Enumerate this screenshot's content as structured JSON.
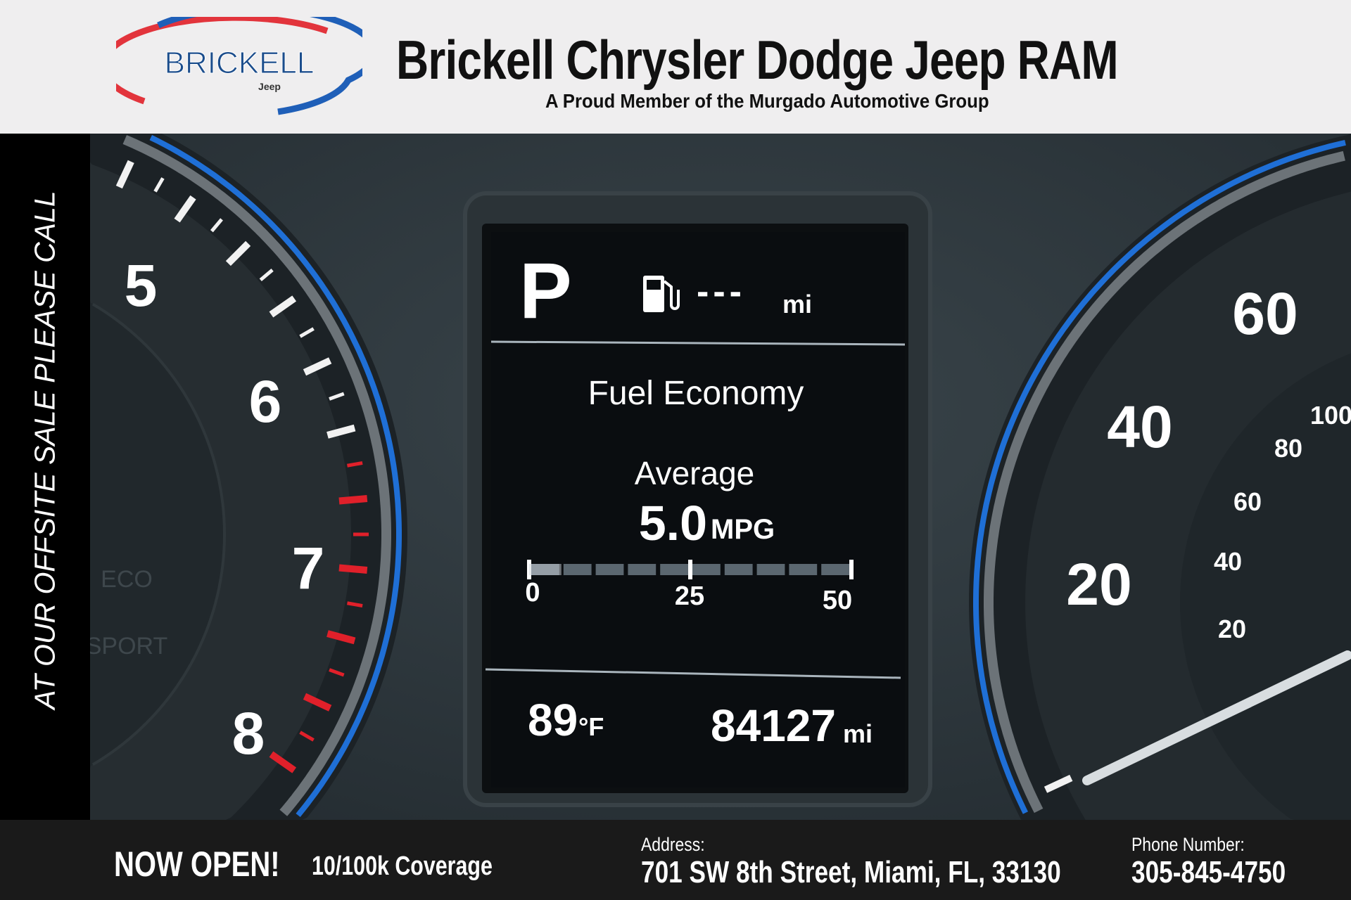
{
  "header": {
    "logo_text": "BRICKELL",
    "logo_sub": "Jeep",
    "title": "Brickell Chrysler Dodge Jeep RAM",
    "subtitle": "A Proud Member of the Murgado Automotive Group"
  },
  "sidebar": {
    "text": "AT OUR OFFSITE SALE PLEASE CALL"
  },
  "cluster": {
    "gear": "P",
    "range_value": "---",
    "range_unit": "mi",
    "screen_title": "Fuel Economy",
    "average_label": "Average",
    "mpg_value": "5.0",
    "mpg_unit": "MPG",
    "bar_labels": [
      "0",
      "25",
      "50"
    ],
    "mpg_fraction": 0.1,
    "temperature": "89",
    "temperature_unit": "°F",
    "odometer": "84127",
    "odometer_unit": "mi",
    "tach_labels": [
      "5",
      "6",
      "7",
      "8"
    ],
    "mode_labels": [
      "ECO",
      "SPORT"
    ],
    "speed_labels": [
      "60",
      "40",
      "20"
    ],
    "speed_inner_labels": [
      "100",
      "80",
      "60",
      "40",
      "20"
    ],
    "fuel_icon": "fuel-pump-icon"
  },
  "footer": {
    "headline": "NOW OPEN!",
    "headline_sub": "10/100k Coverage",
    "address_label": "Address:",
    "address": "701 SW 8th Street, Miami, FL, 33130",
    "phone_label": "Phone Number:",
    "phone": "305-845-4750"
  },
  "colors": {
    "header_bg": "#efeeef",
    "footer_bg": "#1a1a1a",
    "accent_blue": "#1f6fd6",
    "redline": "#e0202a"
  }
}
